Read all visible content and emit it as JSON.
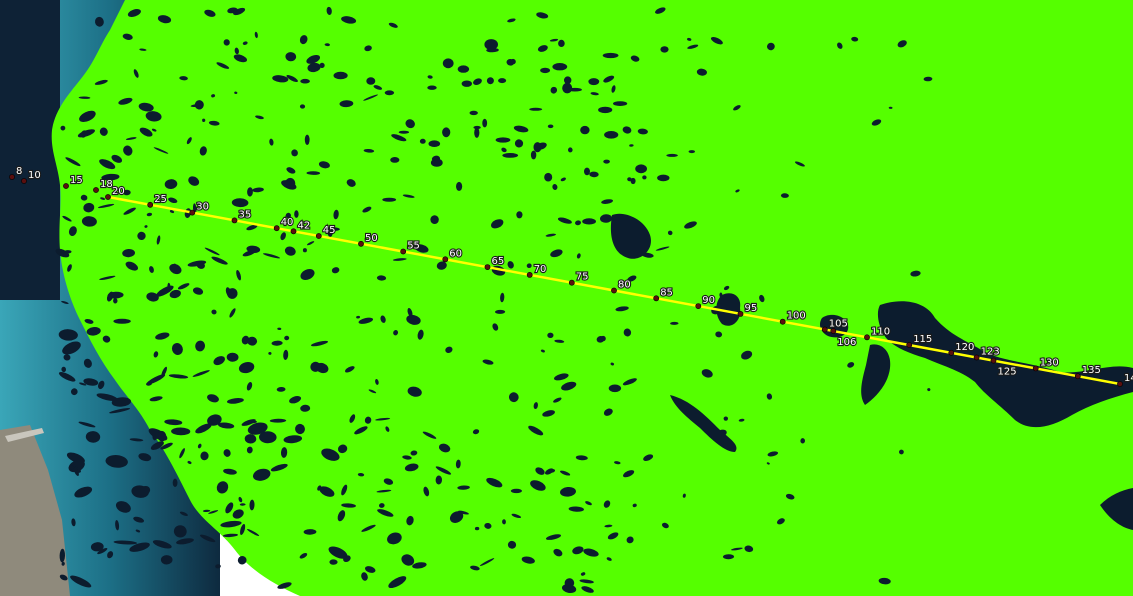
{
  "map": {
    "type": "transect-overlay",
    "basemap": "satellite-imagery",
    "overlay": "land-mask",
    "colors": {
      "land_overlay": "#55ff00",
      "water": "#0c1c2e",
      "sea_shallow": "#2f8fa5",
      "sea_deep": "#0e2a3f",
      "transect_line": "#ffff00",
      "station_marker": "#5a0f0f",
      "label_text": "#ffffff"
    },
    "transect_stations": [
      "8",
      "10",
      "15",
      "18",
      "20",
      "25",
      "30",
      "35",
      "40",
      "42",
      "45",
      "50",
      "55",
      "60",
      "65",
      "70",
      "75",
      "80",
      "85",
      "90",
      "95",
      "100",
      "105",
      "106",
      "110",
      "115",
      "120",
      "123",
      "125",
      "130",
      "135",
      "140"
    ]
  }
}
